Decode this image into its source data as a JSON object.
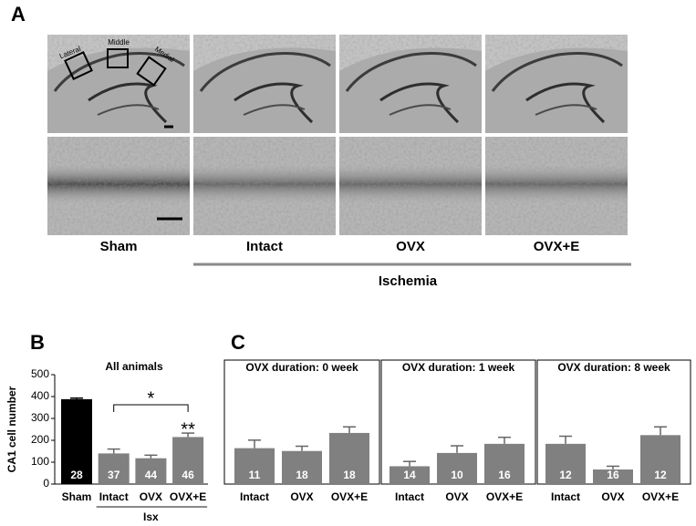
{
  "panel_a": {
    "label": "A",
    "regions": [
      "Lateral",
      "Middle",
      "Medial"
    ],
    "groups": [
      "Sham",
      "Intact",
      "OVX",
      "OVX+E"
    ],
    "ischemia": "Ischemia"
  },
  "panel_b_label": "B",
  "panel_c_label": "C",
  "chart_data": [
    {
      "type": "bar",
      "title": "All animals",
      "ylabel": "CA1 cell number",
      "categories": [
        "Sham",
        "Intact",
        "OVX",
        "OVX+E"
      ],
      "values": [
        388,
        140,
        118,
        215
      ],
      "errors": [
        5,
        20,
        14,
        18
      ],
      "n": [
        28,
        37,
        44,
        46
      ],
      "colors": [
        "#000000",
        "#808080",
        "#808080",
        "#808080"
      ],
      "ylim": [
        0,
        500
      ],
      "yticks": [
        0,
        100,
        200,
        300,
        400,
        500
      ],
      "annotations": [
        "*",
        "**"
      ],
      "group_label": "Isx"
    },
    {
      "type": "bar",
      "title": "OVX duration: 0 week",
      "categories": [
        "Intact",
        "OVX",
        "OVX+E"
      ],
      "values": [
        165,
        152,
        235
      ],
      "errors": [
        37,
        22,
        28
      ],
      "n": [
        11,
        18,
        18
      ],
      "colors": [
        "#808080",
        "#808080",
        "#808080"
      ],
      "ylim": [
        0,
        570
      ]
    },
    {
      "type": "bar",
      "title": "OVX duration: 1 week",
      "categories": [
        "Intact",
        "OVX",
        "OVX+E"
      ],
      "values": [
        82,
        143,
        185
      ],
      "errors": [
        22,
        33,
        30
      ],
      "n": [
        14,
        10,
        16
      ],
      "colors": [
        "#808080",
        "#808080",
        "#808080"
      ],
      "ylim": [
        0,
        570
      ]
    },
    {
      "type": "bar",
      "title": "OVX duration: 8 week",
      "categories": [
        "Intact",
        "OVX",
        "OVX+E"
      ],
      "values": [
        185,
        67,
        225
      ],
      "errors": [
        35,
        15,
        38
      ],
      "n": [
        12,
        16,
        12
      ],
      "colors": [
        "#808080",
        "#808080",
        "#808080"
      ],
      "ylim": [
        0,
        570
      ]
    }
  ]
}
